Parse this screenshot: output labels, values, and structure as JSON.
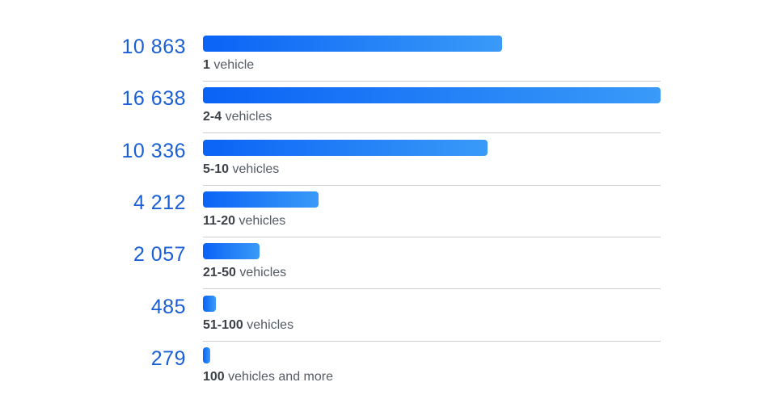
{
  "chart_data": {
    "type": "bar",
    "orientation": "horizontal",
    "xlim": [
      0,
      16638
    ],
    "rows": [
      {
        "value": 10863,
        "value_label": "10 863",
        "label_bold": "1",
        "label_rest": " vehicle"
      },
      {
        "value": 16638,
        "value_label": "16 638",
        "label_bold": "2-4",
        "label_rest": " vehicles"
      },
      {
        "value": 10336,
        "value_label": "10 336",
        "label_bold": "5-10",
        "label_rest": " vehicles"
      },
      {
        "value": 4212,
        "value_label": "4 212",
        "label_bold": "11-20",
        "label_rest": " vehicles"
      },
      {
        "value": 2057,
        "value_label": "2 057",
        "label_bold": "21-50",
        "label_rest": " vehicles"
      },
      {
        "value": 485,
        "value_label": "485",
        "label_bold": "51-100",
        "label_rest": " vehicles"
      },
      {
        "value": 279,
        "value_label": "279",
        "label_bold": "100",
        "label_rest": " vehicles and more"
      }
    ],
    "colors": {
      "bar_start": "#0a63f5",
      "bar_end": "#3a9af8",
      "value_text": "#1a5fd6",
      "label_text": "#555b63",
      "divider": "#c9ccd1"
    },
    "grid": false,
    "legend": "none"
  }
}
